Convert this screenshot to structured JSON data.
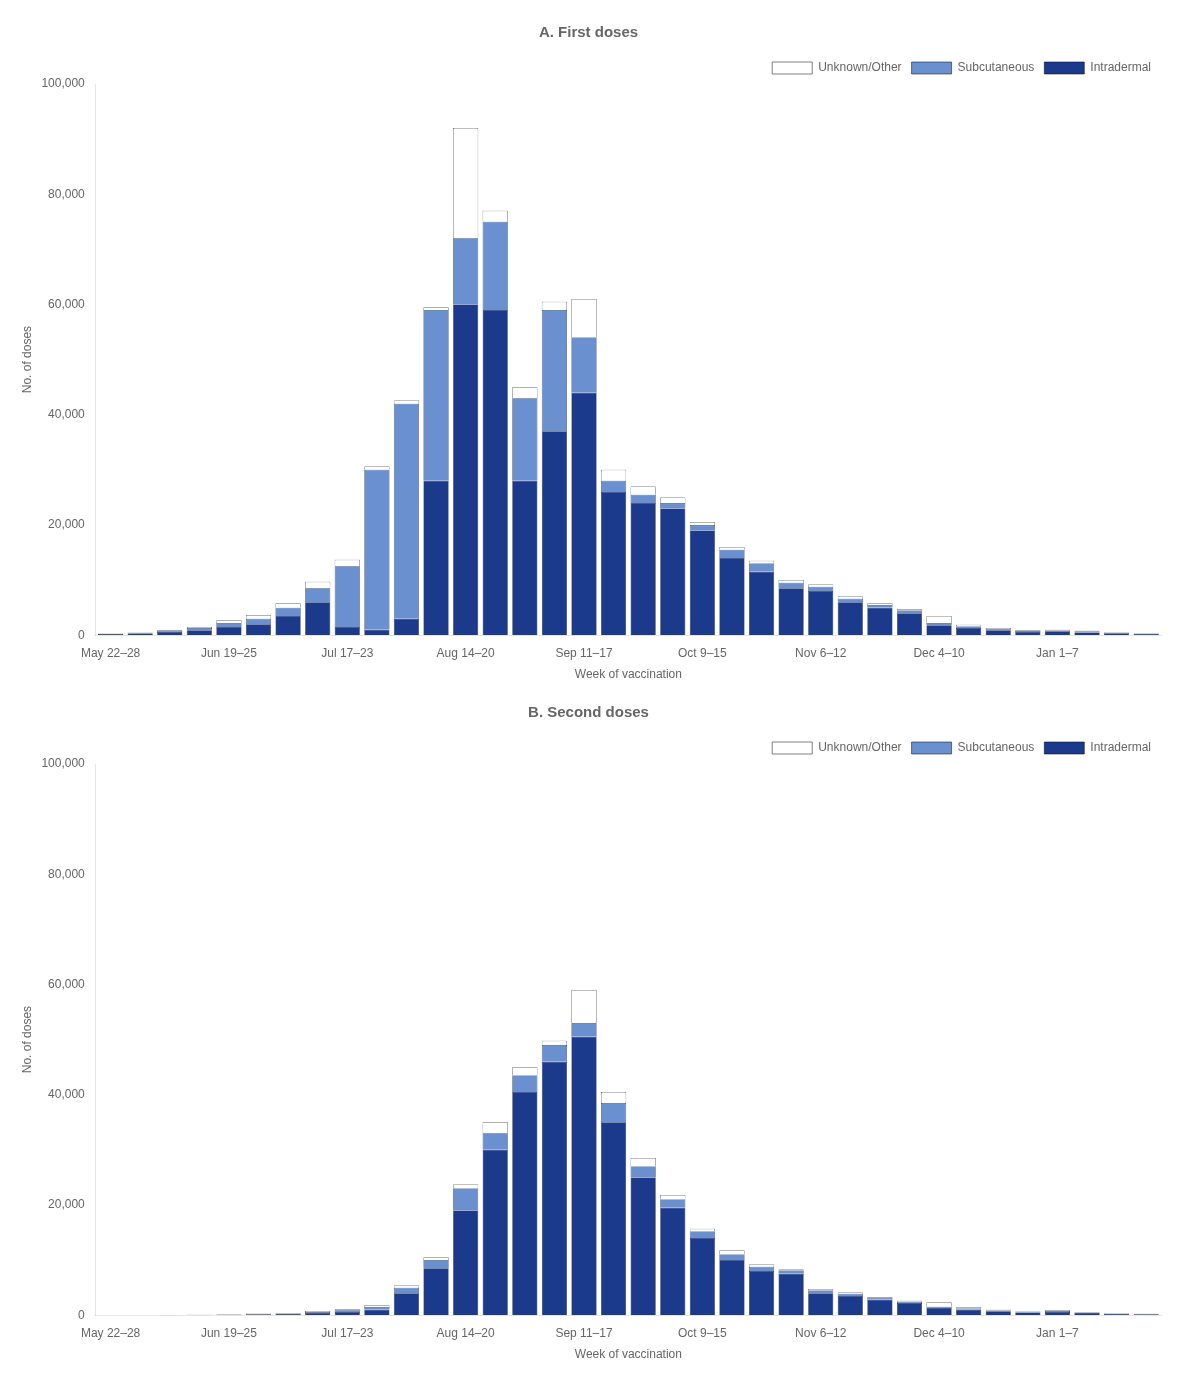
{
  "chart_data": [
    {
      "type": "bar",
      "title": "A. First doses",
      "xlabel": "Week of vaccination",
      "ylabel": "No. of doses",
      "categories": [
        "May 22–28",
        null,
        null,
        null,
        "Jun 19–25",
        null,
        null,
        null,
        "Jul 17–23",
        null,
        null,
        null,
        "Aug 14–20",
        null,
        null,
        null,
        "Sep 11–17",
        null,
        null,
        null,
        "Oct 9–15",
        null,
        null,
        null,
        "Nov 6–12",
        null,
        null,
        null,
        "Dec 4–10",
        null,
        null,
        null,
        "Jan 1–7",
        null,
        null,
        null
      ],
      "series": [
        {
          "name": "Intradermal",
          "color": "#1b3a8c",
          "values": [
            200,
            300,
            600,
            900,
            1500,
            2000,
            3500,
            6000,
            1500,
            1000,
            3000,
            28000,
            60000,
            59000,
            28000,
            37000,
            44000,
            26000,
            24000,
            23000,
            19000,
            14000,
            11500,
            8500,
            8000,
            6000,
            5000,
            4000,
            1800,
            1300,
            900,
            600,
            700,
            500,
            350,
            250
          ]
        },
        {
          "name": "Subcutaneous",
          "color": "#6b90d0",
          "values": [
            50,
            100,
            200,
            400,
            700,
            1000,
            1500,
            2500,
            11000,
            29000,
            39000,
            31000,
            12000,
            16000,
            15000,
            22000,
            10000,
            2000,
            1500,
            1000,
            1000,
            1500,
            1500,
            1000,
            800,
            600,
            500,
            500,
            400,
            300,
            200,
            150,
            150,
            150,
            100,
            80
          ]
        },
        {
          "name": "Unknown/Other",
          "color": "#ffffff",
          "values": [
            50,
            80,
            150,
            200,
            500,
            600,
            800,
            1200,
            1200,
            600,
            600,
            500,
            20000,
            2000,
            2000,
            1500,
            7000,
            2000,
            1500,
            1000,
            500,
            500,
            500,
            500,
            400,
            400,
            300,
            200,
            1300,
            300,
            200,
            150,
            150,
            150,
            100,
            80
          ]
        }
      ],
      "ylim": [
        0,
        100000
      ],
      "yticks": [
        0,
        {
          "value": 20000,
          "label": "20,000"
        },
        {
          "value": 40000,
          "label": "40,000"
        },
        {
          "value": 60000,
          "label": "60,000"
        },
        {
          "value": 80000,
          "label": "80,000"
        },
        {
          "value": 100000,
          "label": "100,000"
        }
      ],
      "stacked": true,
      "grid": false,
      "legend": "upper right"
    },
    {
      "type": "bar",
      "title": "B. Second doses",
      "xlabel": "Week of vaccination",
      "ylabel": "No. of doses",
      "categories": [
        "May 22–28",
        null,
        null,
        null,
        "Jun 19–25",
        null,
        null,
        null,
        "Jul 17–23",
        null,
        null,
        null,
        "Aug 14–20",
        null,
        null,
        null,
        "Sep 11–17",
        null,
        null,
        null,
        "Oct 9–15",
        null,
        null,
        null,
        "Nov 6–12",
        null,
        null,
        null,
        "Dec 4–10",
        null,
        null,
        null,
        "Jan 1–7",
        null,
        null,
        null
      ],
      "series": [
        {
          "name": "Intradermal",
          "color": "#1b3a8c",
          "values": [
            0,
            0,
            30,
            60,
            100,
            150,
            200,
            400,
            600,
            1000,
            4000,
            8500,
            19000,
            30000,
            40500,
            46000,
            50500,
            35000,
            25000,
            19500,
            14000,
            10000,
            8000,
            7500,
            4000,
            3500,
            2800,
            2200,
            1300,
            1000,
            700,
            500,
            600,
            400,
            250,
            150
          ]
        },
        {
          "name": "Subcutaneous",
          "color": "#6b90d0",
          "values": [
            0,
            0,
            10,
            20,
            50,
            80,
            120,
            200,
            300,
            500,
            1000,
            1500,
            4000,
            3000,
            3000,
            3000,
            2500,
            3500,
            2000,
            1500,
            1200,
            1000,
            800,
            600,
            500,
            400,
            350,
            250,
            250,
            200,
            150,
            120,
            150,
            100,
            80,
            60
          ]
        },
        {
          "name": "Unknown/Other",
          "color": "#ffffff",
          "values": [
            0,
            0,
            10,
            20,
            40,
            60,
            80,
            150,
            200,
            300,
            400,
            500,
            700,
            2000,
            1500,
            800,
            6000,
            2000,
            1500,
            800,
            500,
            800,
            400,
            200,
            250,
            200,
            150,
            150,
            800,
            250,
            150,
            100,
            150,
            100,
            60,
            50
          ]
        }
      ],
      "ylim": [
        0,
        100000
      ],
      "yticks": [
        0,
        {
          "value": 20000,
          "label": "20,000"
        },
        {
          "value": 40000,
          "label": "40,000"
        },
        {
          "value": 60000,
          "label": "60,000"
        },
        {
          "value": 80000,
          "label": "80,000"
        },
        {
          "value": 100000,
          "label": "100,000"
        }
      ],
      "stacked": true,
      "grid": false,
      "legend": "upper right"
    }
  ]
}
